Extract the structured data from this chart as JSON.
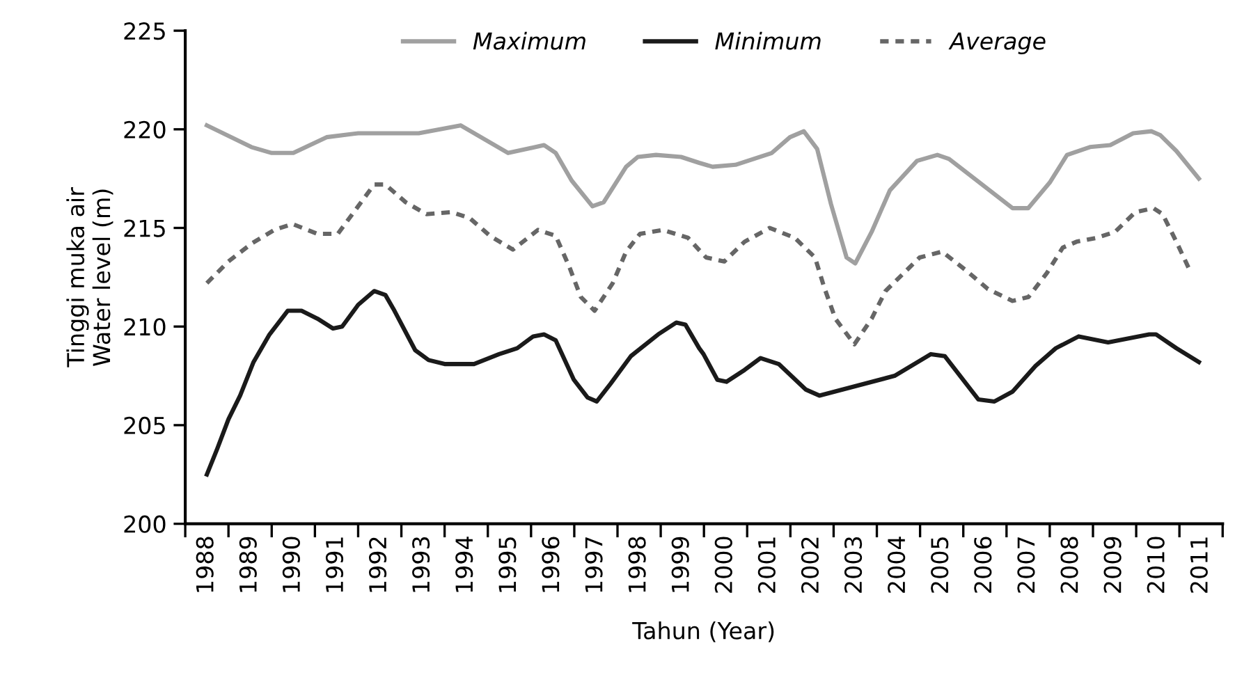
{
  "chart_data": {
    "type": "line",
    "xlabel": "Tahun (Year)",
    "ylabel": "Tinggi muka air\nWater level (m)",
    "xlim": [
      1987.5,
      2011.5
    ],
    "ylim": [
      200,
      225
    ],
    "yticks": [
      200,
      205,
      210,
      215,
      220,
      225
    ],
    "xticks": [
      {
        "value": 1987.5,
        "label": null
      },
      1988,
      {
        "value": 1988.5,
        "label": null
      },
      1989,
      {
        "value": 1989.5,
        "label": null
      },
      1990,
      {
        "value": 1990.5,
        "label": null
      },
      1991,
      {
        "value": 1991.5,
        "label": null
      },
      1992,
      {
        "value": 1992.5,
        "label": null
      },
      1993,
      {
        "value": 1993.5,
        "label": null
      },
      1994,
      {
        "value": 1994.5,
        "label": null
      },
      1995,
      {
        "value": 1995.5,
        "label": null
      },
      1996,
      {
        "value": 1996.5,
        "label": null
      },
      1997,
      {
        "value": 1997.5,
        "label": null
      },
      1998,
      {
        "value": 1998.5,
        "label": null
      },
      1999,
      {
        "value": 1999.5,
        "label": null
      },
      2000,
      {
        "value": 2000.5,
        "label": null
      },
      2001,
      {
        "value": 2001.5,
        "label": null
      },
      2002,
      {
        "value": 2002.5,
        "label": null
      },
      2003,
      {
        "value": 2003.5,
        "label": null
      },
      2004,
      {
        "value": 2004.5,
        "label": null
      },
      2005,
      {
        "value": 2005.5,
        "label": null
      },
      2006,
      {
        "value": 2006.5,
        "label": null
      },
      2007,
      {
        "value": 2007.5,
        "label": null
      },
      2008,
      {
        "value": 2008.5,
        "label": null
      },
      2009,
      {
        "value": 2009.5,
        "label": null
      },
      2010,
      {
        "value": 2010.5,
        "label": null
      },
      2011,
      {
        "value": 2011.5,
        "label": null
      }
    ],
    "grid": false,
    "legend": "top",
    "marker": "none",
    "series": [
      {
        "name": "Maximum",
        "color": "#a0a0a0",
        "line_style": "solid",
        "x": [
          1988.0,
          1989.03,
          1989.5,
          1990.0,
          1990.77,
          1991.5,
          1992.9,
          1993.87,
          1994.97,
          1995.8,
          1996.07,
          1996.44,
          1996.92,
          1997.18,
          1997.7,
          1997.97,
          1998.39,
          1998.97,
          1999.39,
          1999.7,
          2000.23,
          2001.07,
          2001.49,
          2001.81,
          2002.12,
          2002.44,
          2002.8,
          2003.0,
          2003.38,
          2003.8,
          2004.43,
          2004.9,
          2005.17,
          2006.64,
          2007.0,
          2007.5,
          2007.9,
          2008.43,
          2008.9,
          2009.43,
          2009.85,
          2010.06,
          2010.43,
          2010.95
        ],
        "values": [
          220.2,
          219.1,
          218.8,
          218.8,
          219.6,
          219.8,
          219.8,
          220.2,
          218.8,
          219.2,
          218.8,
          217.4,
          216.1,
          216.3,
          218.1,
          218.6,
          218.7,
          218.6,
          218.3,
          218.1,
          218.2,
          218.8,
          219.6,
          219.9,
          219.0,
          216.2,
          213.5,
          213.2,
          214.8,
          216.9,
          218.4,
          218.7,
          218.5,
          216.0,
          216.0,
          217.3,
          218.7,
          219.1,
          219.2,
          219.8,
          219.9,
          219.7,
          218.9,
          217.5
        ]
      },
      {
        "name": "Minimum",
        "color": "#1a1a1a",
        "line_style": "solid",
        "x": [
          1988.0,
          1988.24,
          1988.5,
          1988.77,
          1989.08,
          1989.45,
          1989.87,
          1990.19,
          1990.56,
          1990.92,
          1991.13,
          1991.5,
          1991.87,
          1992.13,
          1992.34,
          1992.82,
          1993.13,
          1993.5,
          1994.18,
          1994.76,
          1995.18,
          1995.55,
          1995.8,
          1996.07,
          1996.49,
          1996.81,
          1997.02,
          1997.34,
          1997.81,
          1998.44,
          1998.86,
          1999.07,
          1999.39,
          1999.49,
          1999.81,
          2000.02,
          2000.44,
          2000.81,
          2001.23,
          2001.86,
          2002.17,
          2003.91,
          2004.75,
          2005.07,
          2005.85,
          2006.22,
          2006.64,
          2007.17,
          2007.64,
          2008.17,
          2008.85,
          2009.8,
          2009.96,
          2010.43,
          2010.95
        ],
        "values": [
          202.5,
          203.8,
          205.3,
          206.5,
          208.2,
          209.6,
          210.8,
          210.8,
          210.4,
          209.9,
          210.0,
          211.1,
          211.8,
          211.6,
          210.8,
          208.8,
          208.3,
          208.1,
          208.1,
          208.6,
          208.9,
          209.5,
          209.6,
          209.3,
          207.3,
          206.4,
          206.2,
          207.1,
          208.5,
          209.6,
          210.2,
          210.1,
          208.9,
          208.6,
          207.3,
          207.2,
          207.8,
          208.4,
          208.1,
          206.8,
          206.5,
          207.5,
          208.6,
          208.5,
          206.3,
          206.2,
          206.7,
          208.0,
          208.9,
          209.5,
          209.2,
          209.6,
          209.6,
          208.9,
          208.2
        ]
      },
      {
        "name": "Average",
        "color": "#666666",
        "line_style": "dashed",
        "x": [
          1988.0,
          1988.5,
          1989.03,
          1989.56,
          1989.98,
          1990.56,
          1991.03,
          1991.5,
          1991.87,
          1992.13,
          1992.6,
          1993.08,
          1993.66,
          1994.08,
          1994.55,
          1995.08,
          1995.66,
          1996.07,
          1996.39,
          1996.65,
          1996.97,
          1997.39,
          1997.7,
          1998.02,
          1998.55,
          1999.13,
          1999.55,
          1999.97,
          2000.44,
          2001.02,
          2001.6,
          2002.07,
          2002.28,
          2002.54,
          2002.98,
          2003.38,
          2003.7,
          2004.49,
          2005.01,
          2005.59,
          2006.07,
          2006.64,
          2007.01,
          2007.43,
          2007.8,
          2008.12,
          2008.59,
          2009.01,
          2009.48,
          2009.9,
          2010.11,
          2010.43,
          2010.75
        ],
        "values": [
          212.2,
          213.3,
          214.2,
          214.9,
          215.2,
          214.7,
          214.7,
          216.1,
          217.2,
          217.2,
          216.3,
          215.7,
          215.8,
          215.5,
          214.6,
          213.9,
          214.9,
          214.6,
          213.0,
          211.5,
          210.8,
          212.2,
          213.8,
          214.7,
          214.9,
          214.5,
          213.5,
          213.3,
          214.3,
          215.0,
          214.5,
          213.5,
          212.0,
          210.4,
          209.1,
          210.4,
          211.8,
          213.5,
          213.8,
          212.8,
          211.9,
          211.3,
          211.5,
          212.7,
          214.0,
          214.3,
          214.5,
          214.8,
          215.8,
          216.0,
          215.7,
          214.3,
          212.8
        ]
      }
    ]
  }
}
